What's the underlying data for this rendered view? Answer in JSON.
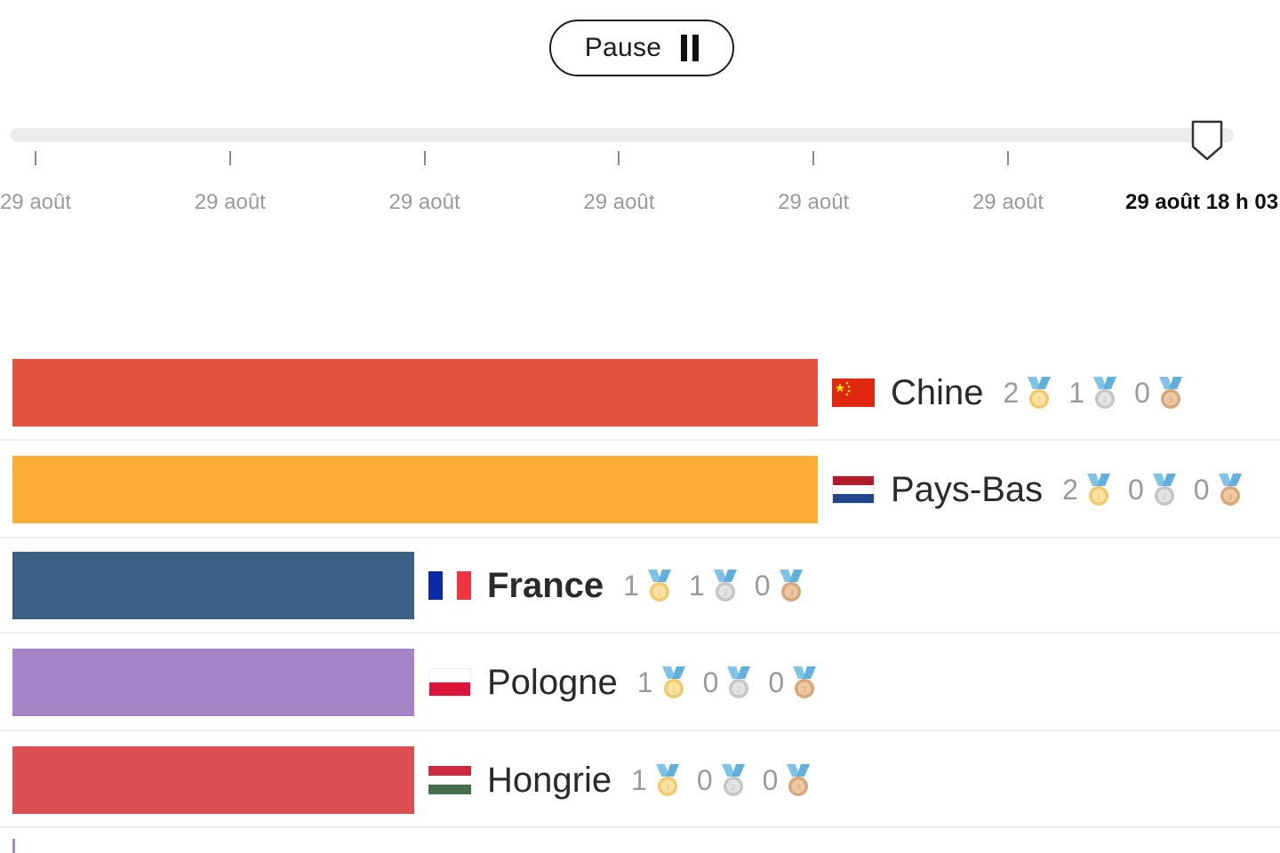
{
  "controls": {
    "pause_label": "Pause"
  },
  "timeline": {
    "ticks": [
      "29 août",
      "29 août",
      "29 août",
      "29 août",
      "29 août",
      "29 août"
    ],
    "current_label": "29 août 18 h 03",
    "progress": 0.98
  },
  "chart_data": {
    "type": "bar",
    "orientation": "horizontal",
    "categories": [
      "Chine",
      "Pays-Bas",
      "France",
      "Pologne",
      "Hongrie"
    ],
    "series": [
      {
        "name": "gold",
        "values": [
          2,
          2,
          1,
          1,
          1
        ]
      },
      {
        "name": "silver",
        "values": [
          1,
          0,
          1,
          0,
          0
        ]
      },
      {
        "name": "bronze",
        "values": [
          0,
          0,
          0,
          0,
          0
        ]
      }
    ],
    "bar_values": [
      2,
      2,
      1,
      1,
      1
    ],
    "bar_colors": [
      "#e4533e",
      "#fcad33",
      "#3c5f86",
      "#a585c8",
      "#dc4e51"
    ],
    "highlight": "France"
  },
  "flags": [
    "china-flag",
    "netherlands-flag",
    "france-flag",
    "poland-flag",
    "hungary-flag"
  ],
  "medal_icons": [
    "gold-medal-icon",
    "silver-medal-icon",
    "bronze-medal-icon"
  ]
}
